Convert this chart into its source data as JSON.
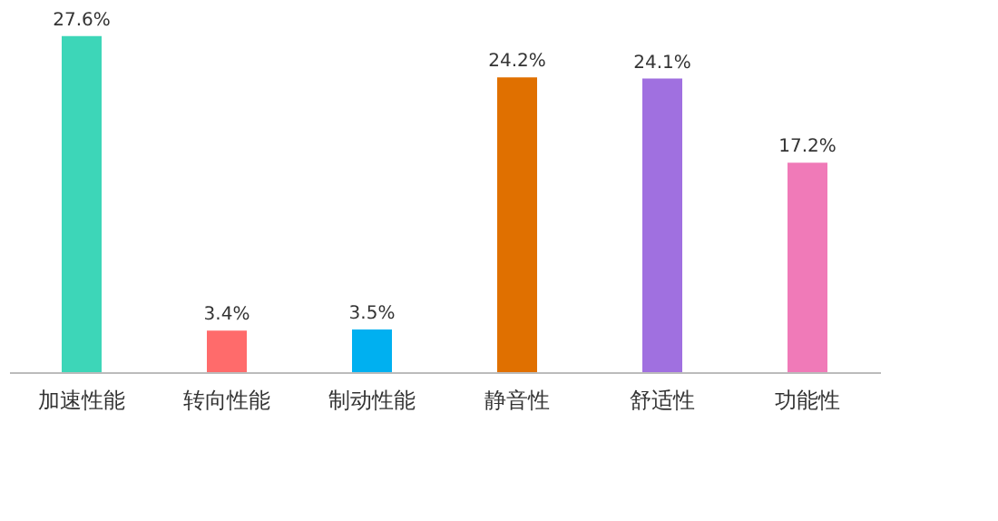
{
  "chart_data": {
    "type": "bar",
    "categories": [
      "加速性能",
      "转向性能",
      "制动性能",
      "静音性",
      "舒适性",
      "功能性"
    ],
    "values": [
      27.6,
      3.4,
      3.5,
      24.2,
      24.1,
      17.2
    ],
    "colors": [
      "#3dd6b8",
      "#ff6b6b",
      "#00b0f0",
      "#e07000",
      "#a070e0",
      "#f07ab8"
    ],
    "value_labels": [
      "27.6%",
      "3.4%",
      "3.5%",
      "24.2%",
      "24.1%",
      "17.2%"
    ],
    "grid": false
  }
}
